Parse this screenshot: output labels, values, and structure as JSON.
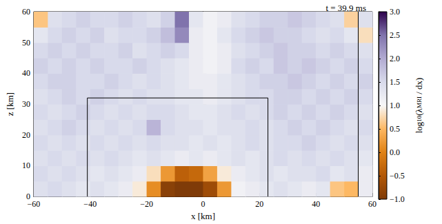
{
  "chart_data": {
    "type": "heatmap",
    "title": "t = 39.9 ms",
    "x_label": "x [km]",
    "y_label": "z [km]",
    "xlim": [
      -60,
      60
    ],
    "ylim": [
      0,
      60
    ],
    "xticks": [
      {
        "value": -60,
        "label": "−60"
      },
      {
        "value": -40,
        "label": "−40"
      },
      {
        "value": -20,
        "label": "−20"
      },
      0,
      20,
      40,
      60
    ],
    "yticks": [
      0,
      10,
      20,
      30,
      40,
      50,
      60
    ],
    "x": [
      -57.5,
      -52.5,
      -47.5,
      -42.5,
      -37.5,
      -32.5,
      -27.5,
      -22.5,
      -17.5,
      -12.5,
      -7.5,
      -2.5,
      2.5,
      7.5,
      12.5,
      17.5,
      22.5,
      27.5,
      32.5,
      37.5,
      42.5,
      47.5,
      52.5,
      57.5
    ],
    "y": [
      2.5,
      7.5,
      12.5,
      17.5,
      22.5,
      27.5,
      32.5,
      37.5,
      42.5,
      47.5,
      52.5,
      57.5
    ],
    "cells": [
      [
        1.4,
        1.5,
        1.4,
        1.3,
        1.4,
        1.3,
        1.2,
        0.9,
        0.1,
        -0.9,
        -1.0,
        -1.0,
        -0.7,
        0.2,
        1.1,
        1.2,
        1.3,
        1.4,
        1.3,
        1.2,
        1.3,
        0.6,
        0.5,
        1.2
      ],
      [
        1.5,
        1.4,
        1.5,
        1.4,
        1.3,
        1.4,
        1.3,
        1.2,
        0.8,
        0.2,
        -0.4,
        -0.3,
        0.3,
        0.9,
        1.2,
        1.3,
        1.4,
        1.3,
        1.4,
        1.4,
        1.5,
        1.3,
        1.4,
        1.2
      ],
      [
        1.4,
        1.5,
        1.4,
        1.5,
        1.4,
        1.5,
        1.4,
        1.3,
        1.4,
        1.3,
        1.2,
        1.3,
        1.2,
        1.3,
        1.4,
        1.3,
        1.4,
        1.5,
        1.4,
        1.5,
        1.4,
        1.5,
        1.4,
        1.3
      ],
      [
        1.5,
        1.4,
        1.5,
        1.4,
        1.5,
        1.4,
        1.5,
        1.4,
        1.5,
        1.4,
        1.4,
        1.3,
        1.4,
        1.3,
        1.4,
        1.5,
        1.4,
        1.5,
        1.5,
        1.6,
        1.5,
        1.4,
        1.5,
        1.4
      ],
      [
        1.4,
        1.5,
        1.6,
        1.5,
        1.4,
        1.5,
        1.4,
        1.5,
        1.9,
        1.5,
        1.4,
        1.4,
        1.3,
        1.4,
        1.4,
        1.5,
        1.4,
        1.5,
        1.6,
        1.5,
        1.6,
        1.5,
        1.4,
        1.5
      ],
      [
        1.5,
        1.4,
        1.5,
        1.6,
        1.5,
        1.4,
        1.5,
        1.4,
        1.5,
        1.5,
        1.4,
        1.3,
        1.3,
        1.4,
        1.5,
        1.4,
        1.5,
        1.6,
        1.5,
        1.6,
        1.5,
        1.6,
        1.5,
        1.4
      ],
      [
        1.4,
        1.5,
        1.6,
        1.5,
        1.6,
        1.5,
        1.4,
        1.5,
        1.4,
        1.4,
        1.3,
        1.3,
        1.2,
        1.3,
        1.4,
        1.5,
        1.5,
        1.6,
        1.6,
        1.5,
        1.6,
        1.5,
        1.6,
        1.5
      ],
      [
        1.5,
        1.6,
        1.6,
        1.5,
        1.5,
        1.6,
        1.5,
        1.4,
        1.5,
        1.4,
        1.3,
        1.2,
        1.2,
        1.3,
        1.4,
        1.5,
        1.6,
        1.6,
        1.7,
        1.6,
        1.5,
        1.6,
        1.5,
        1.6
      ],
      [
        1.6,
        1.5,
        1.6,
        1.5,
        1.6,
        1.5,
        1.5,
        1.6,
        1.5,
        1.4,
        1.3,
        1.2,
        1.1,
        1.2,
        1.5,
        1.6,
        1.5,
        1.7,
        1.6,
        1.7,
        1.6,
        1.5,
        1.6,
        1.5
      ],
      [
        1.5,
        1.6,
        1.5,
        1.6,
        1.5,
        1.5,
        1.6,
        1.4,
        1.5,
        1.6,
        1.5,
        1.2,
        1.1,
        1.2,
        1.4,
        1.5,
        1.6,
        1.7,
        1.6,
        1.6,
        1.5,
        1.6,
        1.5,
        1.4
      ],
      [
        1.3,
        1.5,
        1.6,
        1.5,
        1.6,
        1.4,
        1.5,
        1.5,
        1.6,
        1.8,
        2.3,
        1.2,
        1.1,
        1.3,
        1.5,
        1.6,
        1.7,
        1.6,
        1.6,
        1.5,
        1.4,
        1.5,
        1.3,
        0.8
      ],
      [
        0.6,
        1.4,
        1.5,
        1.6,
        1.5,
        1.5,
        1.6,
        1.5,
        1.4,
        1.6,
        2.5,
        1.3,
        1.1,
        1.2,
        1.4,
        1.5,
        1.6,
        1.6,
        1.7,
        1.6,
        1.5,
        1.4,
        0.7,
        1.4
      ]
    ],
    "colorbar": {
      "label": [
        {
          "text": "log"
        },
        {
          "text": "10",
          "sub": true
        },
        {
          "text": "(λ"
        },
        {
          "text": "MRI",
          "sub": true
        },
        {
          "text": " / dx)"
        }
      ],
      "range": [
        -1,
        3
      ],
      "ticks": [
        {
          "value": -1,
          "label": "−1.0"
        },
        {
          "value": -0.5,
          "label": "−0.5"
        },
        {
          "value": 0,
          "label": "0.0"
        },
        {
          "value": 0.5,
          "label": "0.5"
        },
        {
          "value": 1,
          "label": "1.0"
        },
        {
          "value": 1.5,
          "label": "1.5"
        },
        {
          "value": 2,
          "label": "2.0"
        },
        {
          "value": 2.5,
          "label": "2.5"
        },
        {
          "value": 3,
          "label": "3.0"
        }
      ],
      "colors": [
        [
          -1,
          "#7f3b08"
        ],
        [
          -0.5,
          "#b35806"
        ],
        [
          0,
          "#e08214"
        ],
        [
          0.5,
          "#fdb863"
        ],
        [
          1,
          "#f7f7f7"
        ],
        [
          1.5,
          "#d8daeb"
        ],
        [
          2,
          "#b2abd2"
        ],
        [
          2.5,
          "#8073ac"
        ],
        [
          3,
          "#2d004b"
        ]
      ]
    },
    "boxes": [
      {
        "x": [
          -41,
          23
        ],
        "z": [
          0,
          32
        ]
      }
    ],
    "vlines": [
      55
    ]
  }
}
